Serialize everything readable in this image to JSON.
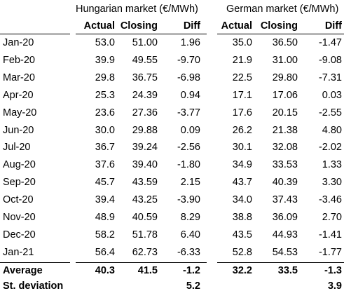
{
  "headers": {
    "hungarian_title": "Hungarian market (€/MWh)",
    "german_title": "German market (€/MWh)",
    "columns": [
      "Actual",
      "Closing",
      "Diff",
      "Actual",
      "Closing",
      "Diff"
    ]
  },
  "rows": [
    {
      "label": "Jan-20",
      "hu": [
        "53.0",
        "51.00",
        "1.96"
      ],
      "de": [
        "35.0",
        "36.50",
        "-1.47"
      ]
    },
    {
      "label": "Feb-20",
      "hu": [
        "39.9",
        "49.55",
        "-9.70"
      ],
      "de": [
        "21.9",
        "31.00",
        "-9.08"
      ]
    },
    {
      "label": "Mar-20",
      "hu": [
        "29.8",
        "36.75",
        "-6.98"
      ],
      "de": [
        "22.5",
        "29.80",
        "-7.31"
      ]
    },
    {
      "label": "Apr-20",
      "hu": [
        "25.3",
        "24.39",
        "0.94"
      ],
      "de": [
        "17.1",
        "17.06",
        "0.03"
      ]
    },
    {
      "label": "May-20",
      "hu": [
        "23.6",
        "27.36",
        "-3.77"
      ],
      "de": [
        "17.6",
        "20.15",
        "-2.55"
      ]
    },
    {
      "label": "Jun-20",
      "hu": [
        "30.0",
        "29.88",
        "0.09"
      ],
      "de": [
        "26.2",
        "21.38",
        "4.80"
      ]
    },
    {
      "label": "Jul-20",
      "hu": [
        "36.7",
        "39.24",
        "-2.56"
      ],
      "de": [
        "30.1",
        "32.08",
        "-2.02"
      ]
    },
    {
      "label": "Aug-20",
      "hu": [
        "37.6",
        "39.40",
        "-1.80"
      ],
      "de": [
        "34.9",
        "33.53",
        "1.33"
      ]
    },
    {
      "label": "Sep-20",
      "hu": [
        "45.7",
        "43.59",
        "2.15"
      ],
      "de": [
        "43.7",
        "40.39",
        "3.30"
      ]
    },
    {
      "label": "Oct-20",
      "hu": [
        "39.4",
        "43.25",
        "-3.90"
      ],
      "de": [
        "34.0",
        "37.43",
        "-3.46"
      ]
    },
    {
      "label": "Nov-20",
      "hu": [
        "48.9",
        "40.59",
        "8.29"
      ],
      "de": [
        "38.8",
        "36.09",
        "2.70"
      ]
    },
    {
      "label": "Dec-20",
      "hu": [
        "58.2",
        "51.78",
        "6.40"
      ],
      "de": [
        "43.5",
        "44.93",
        "-1.41"
      ]
    },
    {
      "label": "Jan-21",
      "hu": [
        "56.4",
        "62.73",
        "-6.33"
      ],
      "de": [
        "52.8",
        "54.53",
        "-1.77"
      ]
    }
  ],
  "summary": [
    {
      "label": "Average",
      "hu": [
        "40.3",
        "41.5",
        "-1.2"
      ],
      "de": [
        "32.2",
        "33.5",
        "-1.3"
      ]
    },
    {
      "label": "St. deviation",
      "hu": [
        "",
        "",
        "5.2"
      ],
      "de": [
        "",
        "",
        "3.9"
      ]
    }
  ]
}
